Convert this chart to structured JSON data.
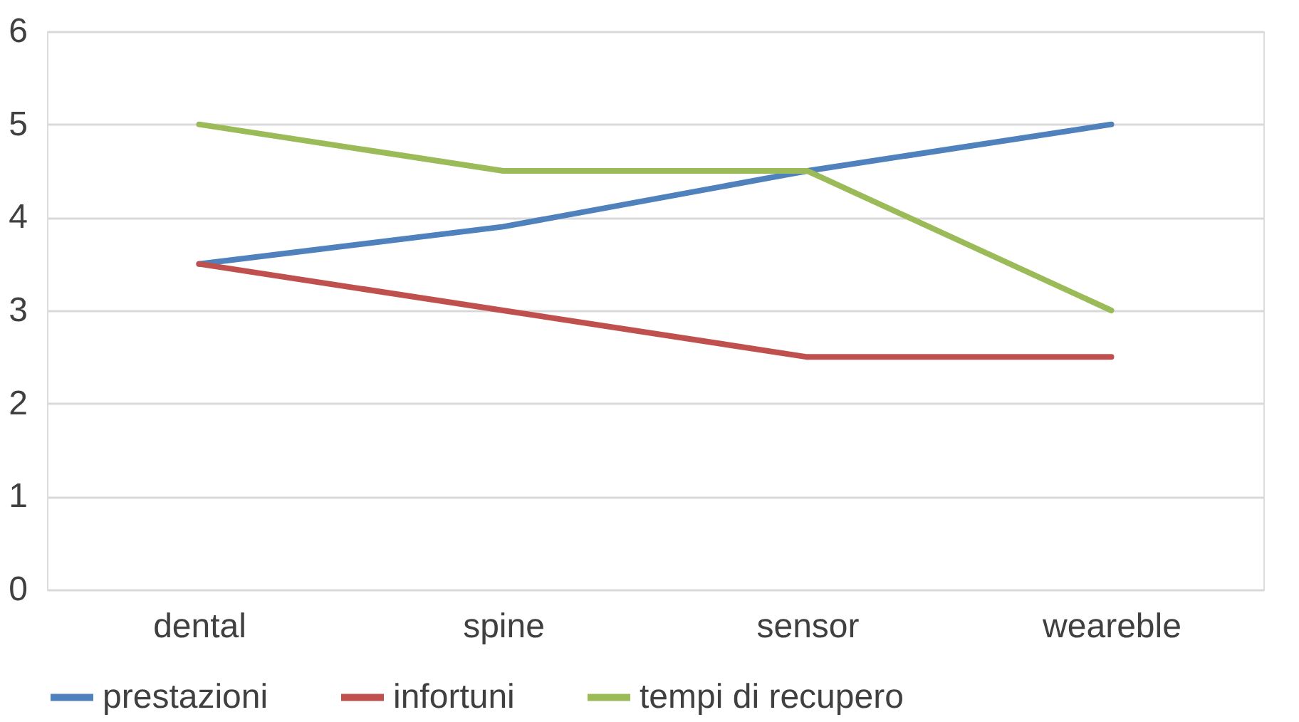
{
  "chart_data": {
    "type": "line",
    "categories": [
      "dental",
      "spine",
      "sensor",
      "weareble"
    ],
    "series": [
      {
        "name": "prestazioni",
        "color": "#4f81bd",
        "values": [
          3.5,
          3.9,
          4.5,
          5
        ]
      },
      {
        "name": "infortuni",
        "color": "#c0504d",
        "values": [
          3.5,
          3,
          2.5,
          2.5
        ]
      },
      {
        "name": "tempi di recupero",
        "color": "#9bbb59",
        "values": [
          5,
          4.5,
          4.5,
          3
        ]
      }
    ],
    "ylim": [
      0,
      6
    ],
    "yticks": [
      0,
      1,
      2,
      3,
      4,
      5,
      6
    ],
    "grid": "y",
    "legend": "bottom",
    "marker": "none",
    "line_style": "solid"
  }
}
